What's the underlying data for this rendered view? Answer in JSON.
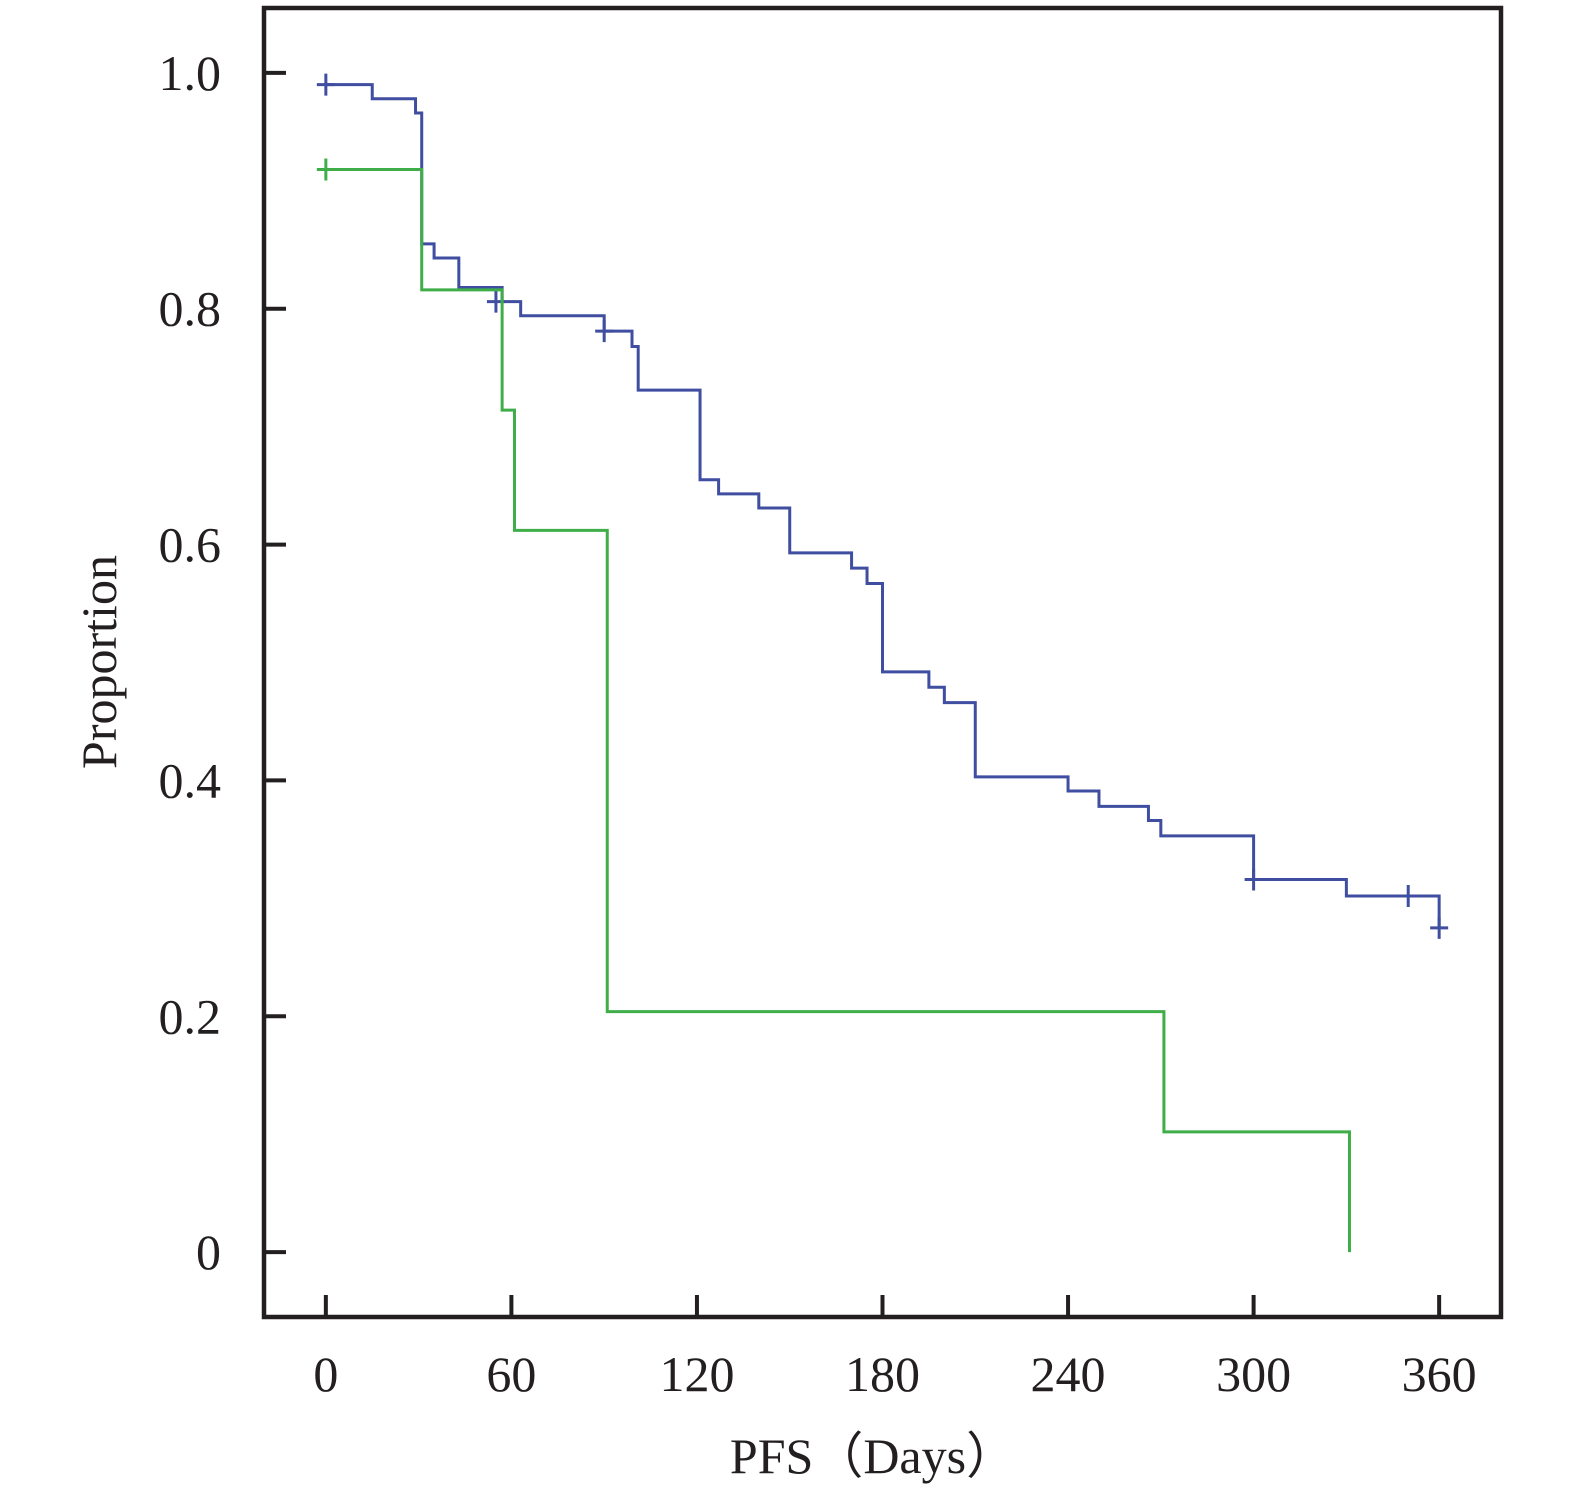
{
  "chart_data": {
    "type": "line",
    "subtype": "kaplan-meier step",
    "title": "",
    "xlabel": "PFS（Days）",
    "ylabel": "Proportion",
    "xlim": [
      -20,
      380
    ],
    "ylim": [
      -0.055,
      1.055
    ],
    "xticks": [
      0,
      60,
      120,
      180,
      240,
      300,
      360
    ],
    "xtick_labels": [
      "0",
      "60",
      "120",
      "180",
      "240",
      "300",
      "360"
    ],
    "yticks": [
      0,
      0.2,
      0.4,
      0.6,
      0.8,
      1.0
    ],
    "ytick_labels": [
      "0",
      "0.2",
      "0.4",
      "0.6",
      "0.8",
      "1.0"
    ],
    "grid": false,
    "legend": "none",
    "series": [
      {
        "color": "#3f4ea0",
        "steps": [
          [
            0,
            0.99
          ],
          [
            15,
            0.978
          ],
          [
            29,
            0.966
          ],
          [
            31,
            0.855
          ],
          [
            35,
            0.843
          ],
          [
            43,
            0.818
          ],
          [
            57,
            0.806
          ],
          [
            63,
            0.794
          ],
          [
            90,
            0.781
          ],
          [
            99,
            0.768
          ],
          [
            101,
            0.731
          ],
          [
            121,
            0.655
          ],
          [
            127,
            0.643
          ],
          [
            140,
            0.631
          ],
          [
            150,
            0.593
          ],
          [
            170,
            0.58
          ],
          [
            175,
            0.567
          ],
          [
            180,
            0.492
          ],
          [
            195,
            0.479
          ],
          [
            200,
            0.466
          ],
          [
            210,
            0.403
          ],
          [
            240,
            0.391
          ],
          [
            250,
            0.378
          ],
          [
            266,
            0.366
          ],
          [
            270,
            0.353
          ],
          [
            300,
            0.316
          ],
          [
            330,
            0.302
          ],
          [
            360,
            0.275
          ]
        ],
        "censored": [
          [
            0,
            0.99
          ],
          [
            55,
            0.806
          ],
          [
            90,
            0.781
          ],
          [
            300,
            0.316
          ],
          [
            350,
            0.302
          ],
          [
            360,
            0.275
          ]
        ]
      },
      {
        "color": "#3fae49",
        "steps": [
          [
            0,
            0.918
          ],
          [
            31,
            0.816
          ],
          [
            57,
            0.714
          ],
          [
            61,
            0.612
          ],
          [
            91,
            0.204
          ],
          [
            271,
            0.102
          ],
          [
            331,
            0.0
          ]
        ],
        "censored": [
          [
            0,
            0.918
          ]
        ]
      }
    ]
  }
}
